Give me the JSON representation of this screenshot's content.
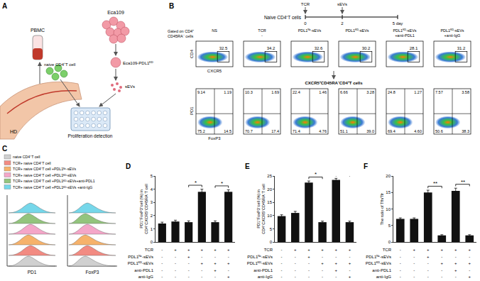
{
  "panel_labels": [
    "A",
    "B",
    "C",
    "D",
    "E",
    "F"
  ],
  "diagram_A": {
    "donor": "HD",
    "pbmc": "PBMC",
    "naive": "naive CD4⁺T cell",
    "cell_line": "Eca109",
    "modified": "Eca109-PDL1ᴷᴰ",
    "sevs": "sEVs",
    "readout": "Proliferation detection"
  },
  "timeline": {
    "cells": "Naive CD4⁺T cells",
    "events": [
      {
        "day": 0,
        "label": "TCR"
      },
      {
        "day": 2,
        "label": "sEVs"
      }
    ],
    "ticks": [
      {
        "value": 0,
        "label": "0"
      },
      {
        "value": 2,
        "label": "2"
      },
      {
        "value": 5,
        "label": "5 day"
      }
    ]
  },
  "flow": {
    "gate_label": [
      "Gated on CD4⁺",
      "CD45RA⁻ cells"
    ],
    "conditions": [
      [
        "NS"
      ],
      [
        "TCR",
        "-"
      ],
      [
        "PDL1ᴺᶜ-sEVs"
      ],
      [
        "PDL1ᴷᴰ-sEVs"
      ],
      [
        "PDL1ᴷᴰ-sEVs",
        "+anti-PDL1"
      ],
      [
        "PDL1ᴷᴰ-sEVs",
        "+anti-IgG"
      ]
    ],
    "row1": {
      "x_label": "CXCR5",
      "y_label": "CD4",
      "gate_values": [
        "32.5",
        "34.2",
        "32.6",
        "30.2",
        "28.1",
        "31.2"
      ]
    },
    "subset_label": "CXCR5⁺CD45RA⁻CD4⁺T cells",
    "row2": {
      "x_label": "FoxP3",
      "y_label": "PD1",
      "quadrants": [
        [
          "9.14",
          "1.19",
          "75.2",
          "14.5"
        ],
        [
          "10.3",
          "1.69",
          "70.7",
          "17.4"
        ],
        [
          "22.4",
          "1.46",
          "71.4",
          "4.76"
        ],
        [
          "6.66",
          "3.28",
          "51.1",
          "39.0"
        ],
        [
          "24.8",
          "1.27",
          "69.4",
          "4.60"
        ],
        [
          "7.57",
          "3.58",
          "50.6",
          "38.3"
        ]
      ]
    }
  },
  "histograms": {
    "legend": [
      {
        "name": "naive CD4⁺T cell",
        "color": "#d0d0d0"
      },
      {
        "name": "TCR+ naive CD4⁺T cell",
        "color": "#f28b82"
      },
      {
        "name": "TCR+ naive CD4⁺T cell +PDL1ᴺᶜ-sEVs",
        "color": "#f6b26b"
      },
      {
        "name": "TCR+ naive CD4⁺T cell +PDL1ᴷᴰ-sEVs",
        "color": "#f4a6c8"
      },
      {
        "name": "TCR+ naive CD4⁺T cell +PDL1ᴷᴰ-sEVs+anti-PDL1",
        "color": "#93c47d"
      },
      {
        "name": "TCR+ naive CD4⁺T cell +PDL1ᴷᴰ-sEVs +anti-IgG",
        "color": "#76d7ea"
      }
    ],
    "x_labels": [
      "PD1",
      "FoxP3"
    ]
  },
  "conditions_table": [
    {
      "label": "TCR",
      "marks": [
        "-",
        "+",
        "+",
        "+",
        "+",
        "+"
      ]
    },
    {
      "label": "PDL1ᴺᶜ-sEVs",
      "marks": [
        "-",
        "-",
        "+",
        "-",
        "-",
        "-"
      ]
    },
    {
      "label": "PDL1ᴷᴰ-sEVs",
      "marks": [
        "-",
        "-",
        "-",
        "+",
        "+",
        "+"
      ]
    },
    {
      "label": "anti-PDL1",
      "marks": [
        "-",
        "-",
        "-",
        "-",
        "+",
        "-"
      ]
    },
    {
      "label": "anti-IgG",
      "marks": [
        "-",
        "-",
        "-",
        "-",
        "-",
        "+"
      ]
    }
  ],
  "chart_data": [
    {
      "type": "bar",
      "y_label": [
        "PD1⁺FoxP3⁺cell (%) in",
        "CD4⁺CXCR5⁺CD45RA⁻T cell"
      ],
      "categories": [
        null,
        null,
        null,
        null,
        null,
        null
      ],
      "values": [
        1.4,
        1.55,
        1.5,
        3.8,
        1.5,
        3.8
      ],
      "errors": [
        0.1,
        0.1,
        0.1,
        0.2,
        0.1,
        0.15
      ],
      "color": "#111111",
      "ylim": [
        0,
        5
      ],
      "yticks": [
        0,
        1,
        2,
        3,
        4,
        5
      ],
      "tick_labels": "y",
      "significance": [
        {
          "from": 2,
          "to": 3,
          "label": "*"
        },
        {
          "from": 4,
          "to": 5,
          "label": "*"
        }
      ]
    },
    {
      "type": "bar",
      "y_label": [
        "PD1⁺FoxP3⁻cell (%) in",
        "CD4⁺CXCR5⁺CD45RA⁻T cell"
      ],
      "categories": [
        null,
        null,
        null,
        null,
        null,
        null
      ],
      "values": [
        9.8,
        11,
        22.5,
        7.5,
        23.5,
        7.5
      ],
      "errors": [
        0.5,
        0.6,
        0.6,
        0.4,
        0.6,
        0.4
      ],
      "color": "#111111",
      "ylim": [
        0,
        25
      ],
      "yticks": [
        0,
        5,
        10,
        15,
        20,
        25
      ],
      "tick_labels": "y",
      "significance": [
        {
          "from": 2,
          "to": 3,
          "label": "*"
        },
        {
          "from": 4,
          "to": 5,
          "label": "*"
        }
      ]
    },
    {
      "type": "bar",
      "y_label": [
        "The ratio of Tfh/Tfr"
      ],
      "categories": [
        null,
        null,
        null,
        null,
        null,
        null
      ],
      "values": [
        7,
        7,
        15,
        2,
        15.5,
        2
      ],
      "errors": [
        0.3,
        0.3,
        0.7,
        0.2,
        0.8,
        0.2
      ],
      "color": "#111111",
      "ylim": [
        0,
        20
      ],
      "yticks": [
        0,
        5,
        10,
        15,
        20
      ],
      "tick_labels": "y",
      "significance": [
        {
          "from": 2,
          "to": 3,
          "label": "**"
        },
        {
          "from": 4,
          "to": 5,
          "label": "**"
        }
      ]
    }
  ]
}
